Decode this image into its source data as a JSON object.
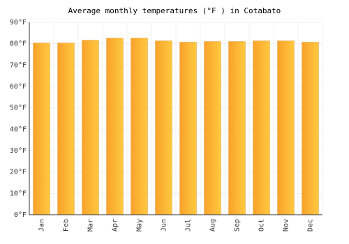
{
  "chart_data": {
    "type": "bar",
    "title": "Average monthly temperatures (°F ) in Cotabato",
    "categories": [
      "Jan",
      "Feb",
      "Mar",
      "Apr",
      "May",
      "Jun",
      "Jul",
      "Aug",
      "Sep",
      "Oct",
      "Nov",
      "Dec"
    ],
    "values": [
      80.3,
      80.3,
      81.6,
      82.6,
      82.6,
      81.3,
      80.7,
      81,
      81,
      81.3,
      81.3,
      80.7
    ],
    "color": "#f9a22a",
    "ylim": [
      0,
      90
    ],
    "yticks": [
      {
        "value": 0,
        "label": "0°F"
      },
      {
        "value": 10,
        "label": "10°F"
      },
      {
        "value": 20,
        "label": "20°F"
      },
      {
        "value": 30,
        "label": "30°F"
      },
      {
        "value": 40,
        "label": "40°F"
      },
      {
        "value": 50,
        "label": "50°F"
      },
      {
        "value": 60,
        "label": "60°F"
      },
      {
        "value": 70,
        "label": "70°F"
      },
      {
        "value": 80,
        "label": "80°F"
      },
      {
        "value": 90,
        "label": "90°F"
      }
    ],
    "grid": true
  }
}
